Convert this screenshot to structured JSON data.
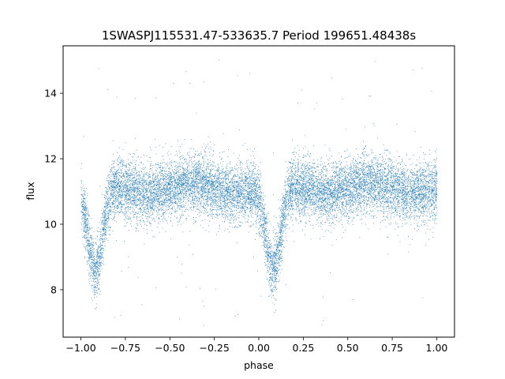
{
  "chart_data": {
    "type": "scatter",
    "title": "1SWASPJ115531.47-533635.7 Period 199651.48438s",
    "xlabel": "phase",
    "ylabel": "flux",
    "xlim": [
      -1.1,
      1.1
    ],
    "ylim": [
      6.55,
      15.45
    ],
    "xticks": [
      -1.0,
      -0.75,
      -0.5,
      -0.25,
      0.0,
      0.25,
      0.5,
      0.75,
      1.0
    ],
    "xtick_labels": [
      "−1.00",
      "−0.75",
      "−0.50",
      "−0.25",
      "0.00",
      "0.25",
      "0.50",
      "0.75",
      "1.00"
    ],
    "yticks": [
      8,
      10,
      12,
      14
    ],
    "ytick_labels": [
      "8",
      "10",
      "12",
      "14"
    ],
    "grid": false,
    "marker_color": "#1f77b4",
    "light_curve": {
      "phase_range": [
        -1.0,
        1.0
      ],
      "baseline_flux": 11.1,
      "scatter_sd": 0.45,
      "eclipse_center_phases": [
        -0.92,
        0.08
      ],
      "eclipse_min_flux": 8.5,
      "eclipse_half_width": 0.09,
      "outlier_flux_range": [
        6.9,
        15.1
      ],
      "n_points": 14000
    }
  }
}
